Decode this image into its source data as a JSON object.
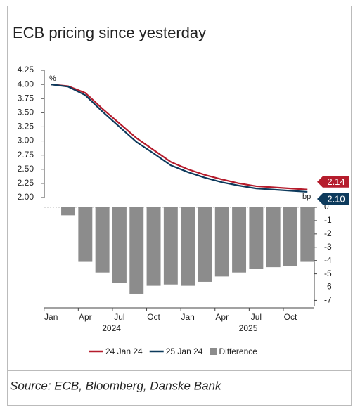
{
  "chart_data": {
    "type": "line",
    "title": "ECB pricing since yesterday",
    "source": "Source: ECB, Bloomberg, Danske Bank",
    "y_unit": "%",
    "y2_unit": "bp",
    "x": [
      0,
      1.5,
      3,
      4.5,
      6,
      7.5,
      9,
      10.5,
      12,
      13.5,
      15,
      16.5,
      18,
      19.5,
      21,
      22.5
    ],
    "xlim": [
      -0.6,
      23.1
    ],
    "xticks": [
      {
        "value": 0,
        "label": "Jan"
      },
      {
        "value": 3,
        "label": "Apr"
      },
      {
        "value": 6,
        "label": "Jul"
      },
      {
        "value": 9,
        "label": "Oct"
      },
      {
        "value": 12,
        "label": "Jan"
      },
      {
        "value": 15,
        "label": "Apr"
      },
      {
        "value": 18,
        "label": "Jul"
      },
      {
        "value": 21,
        "label": "Oct"
      }
    ],
    "year_labels": [
      "2024",
      "2025"
    ],
    "ylim": [
      2,
      4.25
    ],
    "yticks": [
      {
        "value": 2,
        "label": "2.00"
      },
      {
        "value": 2.25,
        "label": "2.25"
      },
      {
        "value": 2.5,
        "label": "2.50"
      },
      {
        "value": 2.75,
        "label": "2.75"
      },
      {
        "value": 3,
        "label": "3.00"
      },
      {
        "value": 3.25,
        "label": "3.25"
      },
      {
        "value": 3.5,
        "label": "3.50"
      },
      {
        "value": 3.75,
        "label": "3.75"
      },
      {
        "value": 4,
        "label": "4.00"
      },
      {
        "value": 4.25,
        "label": "4.25"
      }
    ],
    "y2lim": [
      -7.4,
      0
    ],
    "y2ticks": [
      0,
      -1,
      -2,
      -3,
      -4,
      -5,
      -6,
      -7
    ],
    "series": [
      {
        "name": "24 Jan 24",
        "color": "#b51c2c",
        "type": "line",
        "values": [
          4.0,
          3.97,
          3.85,
          3.57,
          3.31,
          3.05,
          2.84,
          2.63,
          2.5,
          2.4,
          2.32,
          2.25,
          2.2,
          2.18,
          2.16,
          2.14
        ],
        "value_labels": [
          null,
          null,
          null,
          null,
          null,
          null,
          null,
          null,
          null,
          null,
          null,
          null,
          null,
          null,
          null,
          "2.14"
        ]
      },
      {
        "name": "25 Jan 24",
        "color": "#0d3a5c",
        "type": "line",
        "values": [
          4.0,
          3.96,
          3.81,
          3.52,
          3.25,
          2.98,
          2.78,
          2.57,
          2.45,
          2.35,
          2.27,
          2.21,
          2.16,
          2.14,
          2.12,
          2.1
        ],
        "value_labels": [
          null,
          null,
          null,
          null,
          null,
          null,
          null,
          null,
          null,
          null,
          null,
          null,
          null,
          null,
          null,
          "2.10"
        ]
      },
      {
        "name": "Difference",
        "color": "#8c8c8c",
        "type": "bar",
        "axis": "y2",
        "values": [
          null,
          -0.6,
          -4.1,
          -4.9,
          -5.7,
          -6.5,
          -5.9,
          -5.8,
          -5.9,
          -5.6,
          -5.2,
          -4.9,
          -4.6,
          -4.5,
          -4.4,
          -4.1
        ]
      }
    ]
  }
}
